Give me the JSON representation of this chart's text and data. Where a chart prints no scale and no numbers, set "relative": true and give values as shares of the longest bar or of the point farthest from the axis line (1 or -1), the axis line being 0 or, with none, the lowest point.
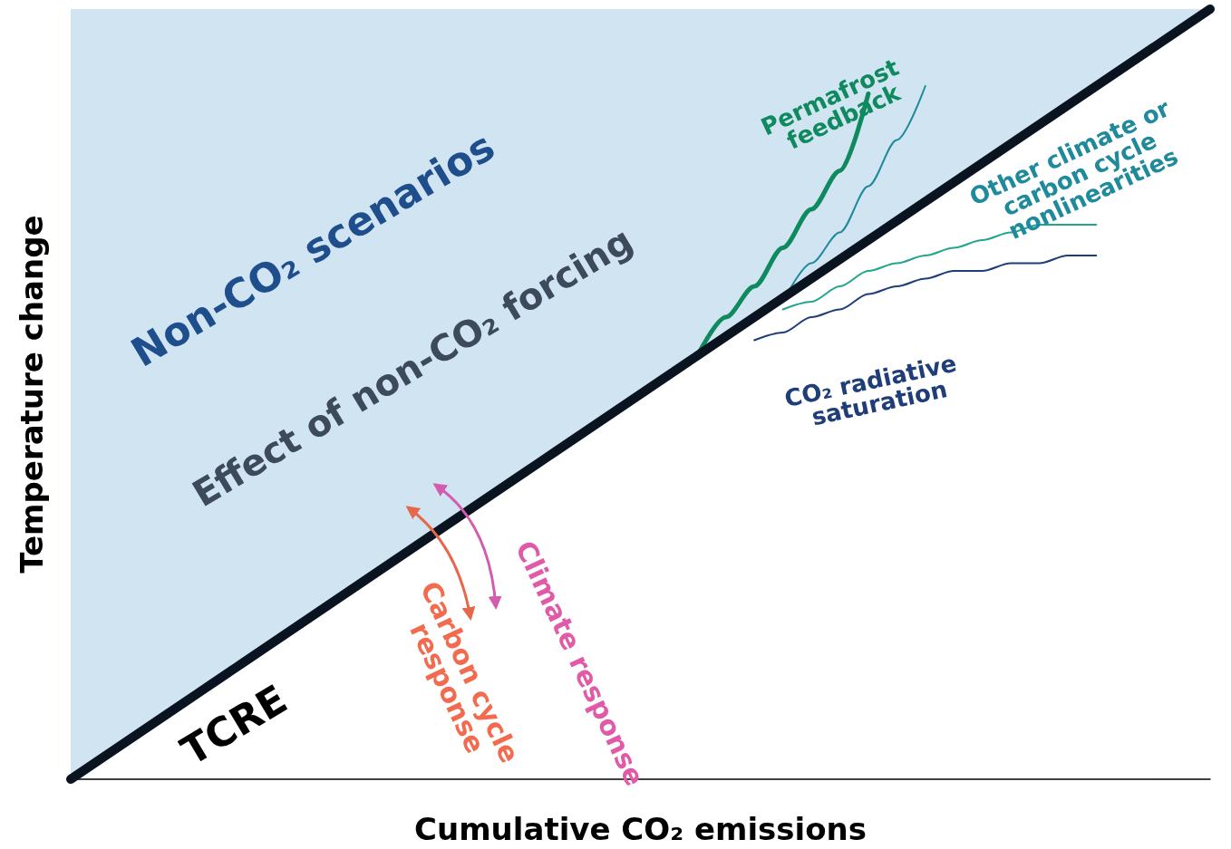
{
  "chart_data": {
    "type": "line",
    "relative": true,
    "xlabel": "Cumulative CO₂ emissions",
    "ylabel": "Temperature change",
    "categories": [
      null,
      null,
      null,
      null,
      null,
      null,
      null,
      null,
      null,
      null,
      null,
      null,
      null,
      null,
      null,
      null,
      null,
      null,
      null,
      null,
      null,
      null,
      null,
      null,
      null,
      null,
      null,
      null,
      null,
      null,
      null,
      null,
      null,
      null,
      null,
      null,
      null,
      null,
      null,
      null,
      null
    ],
    "marker": "none",
    "series": [
      {
        "name": "TCRE",
        "color": "#0a1420",
        "values": [
          0,
          0.025,
          0.05,
          0.075,
          0.1,
          0.125,
          0.15,
          0.175,
          0.2,
          0.225,
          0.25,
          0.275,
          0.3,
          0.325,
          0.35,
          0.375,
          0.4,
          0.425,
          0.45,
          0.475,
          0.5,
          0.525,
          0.55,
          0.575,
          0.6,
          0.625,
          0.65,
          0.675,
          0.7,
          0.725,
          0.75,
          0.775,
          0.8,
          0.825,
          0.85,
          0.875,
          0.9,
          0.925,
          0.95,
          0.975,
          1
        ],
        "lower": [
          0,
          0.025,
          0.05,
          0.075,
          0.1,
          0.125,
          0.15,
          0.175,
          0.2,
          0.225,
          0.25,
          0.275,
          0.3,
          0.325,
          0.35,
          0.375,
          0.4,
          0.425,
          0.45,
          0.475,
          0.5,
          0.525,
          0.55,
          0.575,
          0.6,
          0.625,
          0.65,
          0.675,
          0.7,
          0.725,
          0.75,
          0.775,
          0.8,
          0.825,
          0.85,
          0.875,
          0.9,
          0.925,
          0.95,
          0.975,
          1
        ],
        "upper": [
          1,
          1,
          1,
          1,
          1,
          1,
          1,
          1,
          1,
          1,
          1,
          1,
          1,
          1,
          1,
          1,
          1,
          1,
          1,
          1,
          1,
          1,
          1,
          1,
          1,
          1,
          1,
          1,
          1,
          1,
          1,
          1,
          1,
          1,
          1,
          1,
          1,
          1,
          1,
          1,
          1
        ]
      },
      {
        "name": "Permafrost feedback",
        "color": "#0f8a5f",
        "values": [
          null,
          null,
          null,
          null,
          null,
          null,
          null,
          null,
          null,
          null,
          null,
          null,
          null,
          null,
          null,
          null,
          null,
          null,
          null,
          null,
          null,
          null,
          0.55,
          0.6,
          0.64,
          0.69,
          0.74,
          0.79,
          0.89,
          null,
          null,
          null,
          null,
          null,
          null,
          null,
          null,
          null,
          null,
          null,
          null
        ]
      },
      {
        "name": "Other climate or carbon cycle nonlinearities",
        "color": "#1e8a9c",
        "values": [
          null,
          null,
          null,
          null,
          null,
          null,
          null,
          null,
          null,
          null,
          null,
          null,
          null,
          null,
          null,
          null,
          null,
          null,
          null,
          null,
          null,
          null,
          null,
          null,
          null,
          0.62,
          0.67,
          0.71,
          0.77,
          0.83,
          0.9,
          null,
          null,
          null,
          null,
          null,
          null,
          null,
          null,
          null,
          null
        ]
      },
      {
        "color": "#22a58e",
        "values": [
          null,
          null,
          null,
          null,
          null,
          null,
          null,
          null,
          null,
          null,
          null,
          null,
          null,
          null,
          null,
          null,
          null,
          null,
          null,
          null,
          null,
          null,
          null,
          null,
          null,
          0.61,
          0.62,
          0.64,
          0.66,
          0.67,
          0.68,
          0.69,
          0.7,
          0.71,
          0.72,
          0.72,
          0.72,
          null,
          null,
          null,
          null
        ]
      },
      {
        "name": "CO₂ radiative saturation",
        "color": "#1f3d78",
        "values": [
          null,
          null,
          null,
          null,
          null,
          null,
          null,
          null,
          null,
          null,
          null,
          null,
          null,
          null,
          null,
          null,
          null,
          null,
          null,
          null,
          null,
          null,
          null,
          null,
          0.57,
          0.58,
          0.6,
          0.61,
          0.63,
          0.64,
          0.65,
          0.66,
          0.66,
          0.67,
          0.67,
          0.68,
          0.68,
          null,
          null,
          null,
          null
        ]
      }
    ],
    "annotations": [
      "Non-CO₂ scenarios",
      "Effect of non-CO₂ forcing",
      "Carbon cycle response",
      "Climate response"
    ]
  }
}
